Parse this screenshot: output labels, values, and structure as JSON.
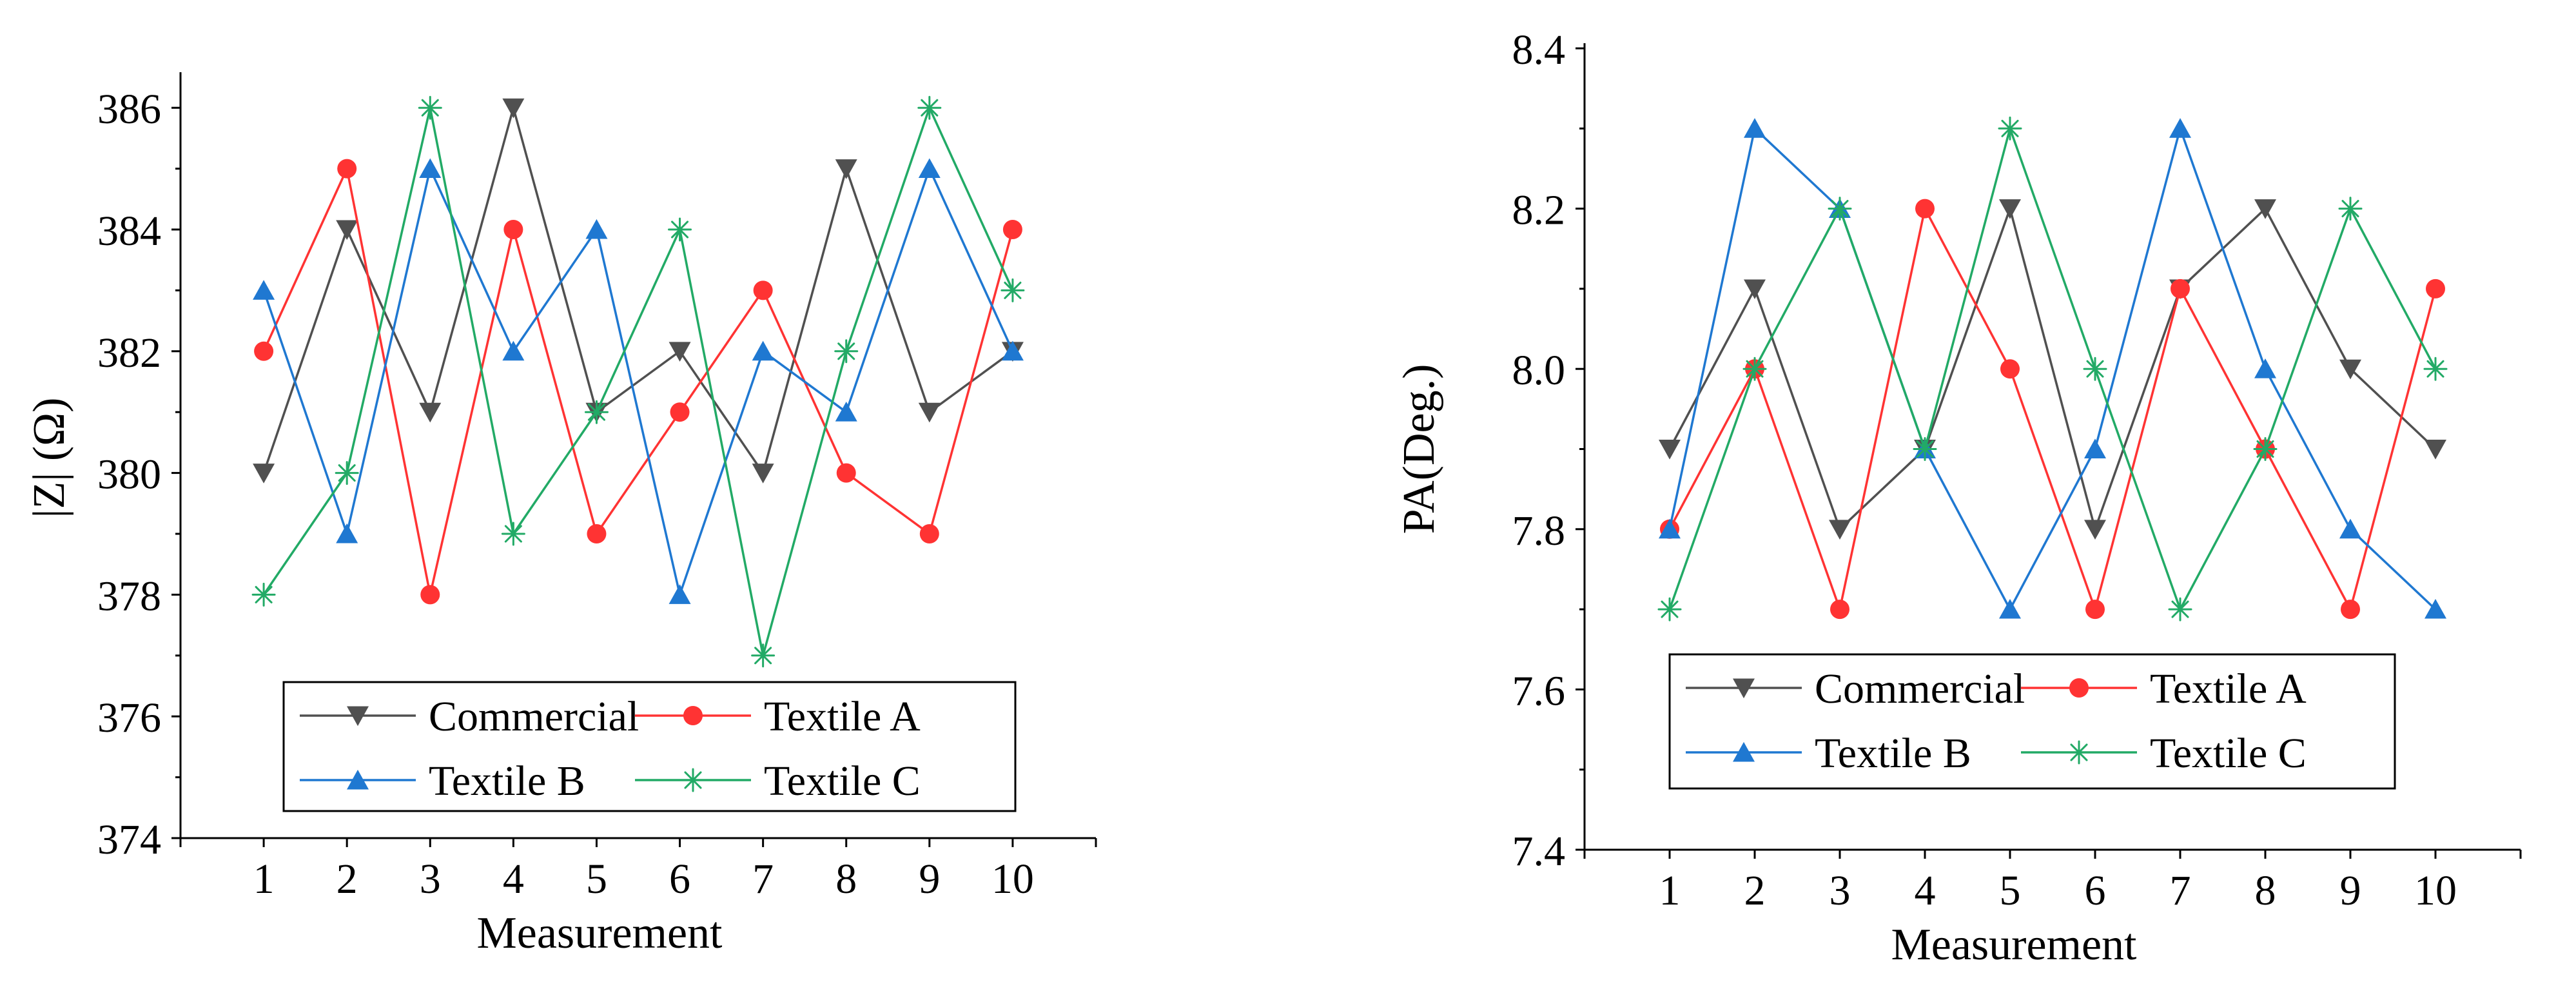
{
  "chart_data": [
    {
      "type": "line",
      "id": "impedance",
      "title": "",
      "xlabel": "Measurement",
      "ylabel": "|Z| (Ω)",
      "x": [
        1,
        2,
        3,
        4,
        5,
        6,
        7,
        8,
        9,
        10
      ],
      "xticks": [
        "1",
        "2",
        "3",
        "4",
        "5",
        "6",
        "7",
        "8",
        "9",
        "10"
      ],
      "xlim": [
        0,
        11
      ],
      "ylim": [
        374,
        386.5
      ],
      "yticks": [
        374,
        376,
        378,
        380,
        382,
        384,
        386
      ],
      "ytick_labels": [
        "374",
        "376",
        "378",
        "380",
        "382",
        "384",
        "386"
      ],
      "grid": false,
      "legend_position": "bottom-center",
      "series": [
        {
          "name": "Commercial",
          "color": "#505050",
          "marker": "triangle-down",
          "values": [
            380,
            384,
            381,
            386,
            381,
            382,
            380,
            385,
            381,
            382
          ]
        },
        {
          "name": "Textile A",
          "color": "#ff3333",
          "marker": "circle",
          "values": [
            382,
            385,
            378,
            384,
            379,
            381,
            383,
            380,
            379,
            384
          ]
        },
        {
          "name": "Textile B",
          "color": "#1f78d1",
          "marker": "triangle-up",
          "values": [
            383,
            379,
            385,
            382,
            384,
            378,
            382,
            381,
            385,
            382
          ]
        },
        {
          "name": "Textile C",
          "color": "#22aa66",
          "marker": "star",
          "values": [
            378,
            380,
            386,
            379,
            381,
            384,
            377,
            382,
            386,
            383
          ]
        }
      ]
    },
    {
      "type": "line",
      "id": "phase-angle",
      "title": "",
      "xlabel": "Measurement",
      "ylabel": "PA(Deg.)",
      "x": [
        1,
        2,
        3,
        4,
        5,
        6,
        7,
        8,
        9,
        10
      ],
      "xticks": [
        "1",
        "2",
        "3",
        "4",
        "5",
        "6",
        "7",
        "8",
        "9",
        "10"
      ],
      "xlim": [
        0,
        11
      ],
      "ylim": [
        7.4,
        8.4
      ],
      "yticks": [
        7.4,
        7.6,
        7.8,
        8.0,
        8.2,
        8.4
      ],
      "ytick_labels": [
        "7.4",
        "7.6",
        "7.8",
        "8.0",
        "8.2",
        "8.4"
      ],
      "grid": false,
      "legend_position": "bottom-center",
      "series": [
        {
          "name": "Commercial",
          "color": "#505050",
          "marker": "triangle-down",
          "values": [
            7.9,
            8.1,
            7.8,
            7.9,
            8.2,
            7.8,
            8.1,
            8.2,
            8.0,
            7.9
          ]
        },
        {
          "name": "Textile A",
          "color": "#ff3333",
          "marker": "circle",
          "values": [
            7.8,
            8.0,
            7.7,
            8.2,
            8.0,
            7.7,
            8.1,
            7.9,
            7.7,
            8.1
          ]
        },
        {
          "name": "Textile B",
          "color": "#1f78d1",
          "marker": "triangle-up",
          "values": [
            7.8,
            8.3,
            8.2,
            7.9,
            7.7,
            7.9,
            8.3,
            8.0,
            7.8,
            7.7
          ]
        },
        {
          "name": "Textile C",
          "color": "#22aa66",
          "marker": "star",
          "values": [
            7.7,
            8.0,
            8.2,
            7.9,
            8.3,
            8.0,
            7.7,
            7.9,
            8.2,
            8.0
          ]
        }
      ]
    }
  ]
}
